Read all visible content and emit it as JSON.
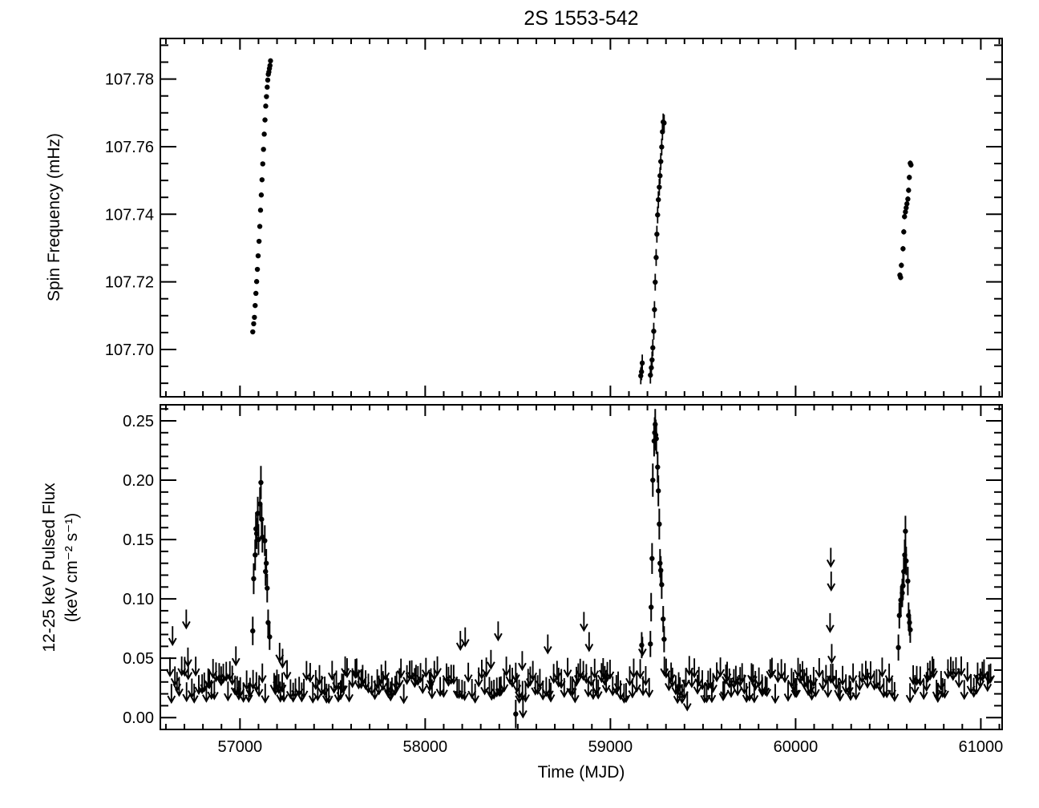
{
  "colors": {
    "ink": "#000000",
    "background": "#ffffff"
  },
  "chart_data": {
    "type": "scatter",
    "title": "2S 1553-542",
    "xlabel": "Time (MJD)",
    "xlim": [
      56570,
      61115
    ],
    "xticks": {
      "major": [
        57000,
        58000,
        59000,
        60000,
        61000
      ],
      "labels": [
        "57000",
        "58000",
        "59000",
        "60000",
        "61000"
      ],
      "minor_step": 100
    },
    "grid": false,
    "legend": "none",
    "panels": [
      {
        "name": "spin-frequency",
        "ylabel": "Spin Frequency (mHz)",
        "ylim": [
          107.686,
          107.792
        ],
        "yticks": {
          "major": [
            107.7,
            107.72,
            107.74,
            107.76,
            107.78
          ],
          "labels": [
            "107.70",
            "107.72",
            "107.74",
            "107.76",
            "107.78"
          ],
          "minor_step": 0.005
        },
        "series": [
          {
            "name": "spin-outburst-2015",
            "err": 0.0004,
            "points": [
              [
                57069,
                107.7052
              ],
              [
                57074,
                107.7076
              ],
              [
                57078,
                107.7095
              ],
              [
                57082,
                107.713
              ],
              [
                57086,
                107.7166
              ],
              [
                57090,
                107.7201
              ],
              [
                57094,
                107.7237
              ],
              [
                57098,
                107.7277
              ],
              [
                57103,
                107.732
              ],
              [
                57107,
                107.7364
              ],
              [
                57111,
                107.7412
              ],
              [
                57115,
                107.7457
              ],
              [
                57119,
                107.7502
              ],
              [
                57123,
                107.7549
              ],
              [
                57127,
                107.7592
              ],
              [
                57131,
                107.7637
              ],
              [
                57135,
                107.7679
              ],
              [
                57139,
                107.772
              ],
              [
                57143,
                107.7748
              ],
              [
                57147,
                107.7776
              ],
              [
                57150,
                107.7797
              ],
              [
                57153,
                107.7814
              ],
              [
                57156,
                107.7821
              ],
              [
                57159,
                107.7831
              ],
              [
                57162,
                107.784
              ],
              [
                57165,
                107.7854
              ]
            ]
          },
          {
            "name": "spin-outburst-2021",
            "err": 0.0025,
            "points": [
              [
                59164,
                107.6922
              ],
              [
                59168,
                107.6934
              ],
              [
                59172,
                107.696
              ],
              [
                59216,
                107.6924
              ],
              [
                59221,
                107.6946
              ],
              [
                59225,
                107.6969
              ],
              [
                59229,
                107.7005
              ],
              [
                59234,
                107.7054
              ],
              [
                59238,
                107.7118
              ],
              [
                59242,
                107.7199
              ],
              [
                59247,
                107.7272
              ],
              [
                59251,
                107.7341
              ],
              [
                59255,
                107.7398
              ],
              [
                59259,
                107.7443
              ],
              [
                59264,
                107.748
              ],
              [
                59268,
                107.7514
              ],
              [
                59272,
                107.7556
              ],
              [
                59277,
                107.7599
              ],
              [
                59281,
                107.7644
              ],
              [
                59285,
                107.7673
              ],
              [
                59290,
                107.767
              ]
            ]
          },
          {
            "name": "spin-outburst-2024",
            "err": 0.0008,
            "points": [
              [
                60563,
                107.722
              ],
              [
                60567,
                107.7213
              ],
              [
                60571,
                107.7249
              ],
              [
                60580,
                107.7298
              ],
              [
                60584,
                107.7348
              ],
              [
                60588,
                107.7393
              ],
              [
                60593,
                107.7407
              ],
              [
                60597,
                107.7419
              ],
              [
                60601,
                107.7431
              ],
              [
                60606,
                107.7445
              ],
              [
                60610,
                107.7471
              ],
              [
                60614,
                107.7509
              ],
              [
                60619,
                107.7551
              ],
              [
                60623,
                107.7546
              ]
            ]
          }
        ]
      },
      {
        "name": "pulsed-flux",
        "ylabel_line1": "12-25 keV Pulsed Flux",
        "ylabel_line2": "(keV cm⁻² s⁻¹)",
        "ylim": [
          -0.01,
          0.2635
        ],
        "yticks": {
          "major": [
            0.0,
            0.05,
            0.1,
            0.15,
            0.2,
            0.25
          ],
          "labels": [
            "0.00",
            "0.05",
            "0.10",
            "0.15",
            "0.20",
            "0.25"
          ],
          "minor_step": 0.01
        },
        "detections": [
          {
            "name": "flux-outburst-2015",
            "points": [
              [
                57069,
                0.073,
                0.012
              ],
              [
                57074,
                0.117,
                0.013
              ],
              [
                57082,
                0.137,
                0.013
              ],
              [
                57086,
                0.159,
                0.014
              ],
              [
                57090,
                0.155,
                0.013
              ],
              [
                57096,
                0.172,
                0.014
              ],
              [
                57100,
                0.15,
                0.013
              ],
              [
                57108,
                0.18,
                0.014
              ],
              [
                57113,
                0.198,
                0.014
              ],
              [
                57117,
                0.167,
                0.013
              ],
              [
                57121,
                0.152,
                0.013
              ],
              [
                57134,
                0.149,
                0.013
              ],
              [
                57138,
                0.123,
                0.012
              ],
              [
                57142,
                0.13,
                0.012
              ],
              [
                57147,
                0.109,
                0.012
              ],
              [
                57152,
                0.08,
                0.011
              ],
              [
                57160,
                0.068,
                0.011
              ]
            ]
          },
          {
            "name": "flux-outburst-2021",
            "points": [
              [
                59169,
                0.061,
                0.011
              ],
              [
                59216,
                0.062,
                0.011
              ],
              [
                59220,
                0.093,
                0.012
              ],
              [
                59225,
                0.134,
                0.013
              ],
              [
                59229,
                0.2,
                0.014
              ],
              [
                59236,
                0.233,
                0.013
              ],
              [
                59239,
                0.24,
                0.013
              ],
              [
                59242,
                0.247,
                0.013
              ],
              [
                59245,
                0.238,
                0.013
              ],
              [
                59248,
                0.235,
                0.013
              ],
              [
                59255,
                0.211,
                0.013
              ],
              [
                59259,
                0.191,
                0.013
              ],
              [
                59264,
                0.163,
                0.013
              ],
              [
                59268,
                0.13,
                0.012
              ],
              [
                59272,
                0.124,
                0.012
              ],
              [
                59277,
                0.112,
                0.012
              ],
              [
                59285,
                0.083,
                0.011
              ],
              [
                59290,
                0.066,
                0.011
              ]
            ]
          },
          {
            "name": "flux-outburst-2024",
            "points": [
              [
                60555,
                0.059,
                0.011
              ],
              [
                60560,
                0.086,
                0.011
              ],
              [
                60568,
                0.099,
                0.012
              ],
              [
                60576,
                0.105,
                0.012
              ],
              [
                60580,
                0.111,
                0.012
              ],
              [
                60584,
                0.123,
                0.012
              ],
              [
                60589,
                0.137,
                0.013
              ],
              [
                60593,
                0.157,
                0.013
              ],
              [
                60597,
                0.132,
                0.012
              ],
              [
                60606,
                0.115,
                0.012
              ],
              [
                60610,
                0.086,
                0.011
              ],
              [
                60615,
                0.08,
                0.011
              ],
              [
                60619,
                0.074,
                0.011
              ]
            ]
          },
          {
            "name": "flux-faint-detection",
            "points": [
              [
                58489,
                0.003,
                0.012
              ]
            ]
          }
        ],
        "upper_limits_notable": [
          [
            56636,
            0.077
          ],
          [
            56710,
            0.091
          ],
          [
            56719,
            0.059
          ],
          [
            56978,
            0.06
          ],
          [
            57214,
            0.063
          ],
          [
            57230,
            0.058
          ],
          [
            58190,
            0.073
          ],
          [
            58216,
            0.076
          ],
          [
            58355,
            0.057
          ],
          [
            58394,
            0.081
          ],
          [
            58507,
            0.032
          ],
          [
            58524,
            0.056
          ],
          [
            58528,
            0.016
          ],
          [
            58662,
            0.07
          ],
          [
            58857,
            0.089
          ],
          [
            58885,
            0.072
          ],
          [
            59173,
            0.068
          ],
          [
            59415,
            0.022
          ],
          [
            59820,
            0.034
          ],
          [
            60186,
            0.088
          ],
          [
            60190,
            0.143
          ],
          [
            60192,
            0.123
          ],
          [
            60195,
            0.062
          ]
        ],
        "upper_limit_band": {
          "mjd_start": 56622,
          "mjd_end": 61058,
          "step_min": 6,
          "step_max": 20,
          "flux_min": 0.028,
          "flux_max": 0.052,
          "arrow_flux_len": 0.0155,
          "seed": 987654321,
          "gaps": [
            [
              57141,
              57170
            ],
            [
              59218,
              59284
            ],
            [
              60548,
              60614
            ]
          ]
        }
      }
    ]
  }
}
